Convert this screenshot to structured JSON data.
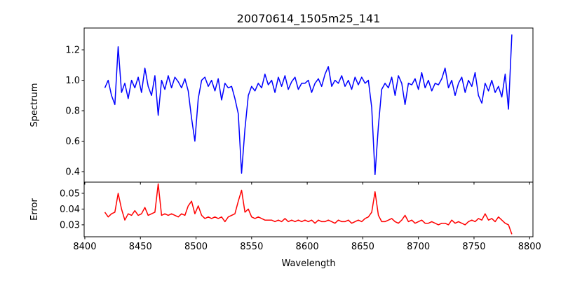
{
  "chart_data": [
    {
      "type": "line",
      "title": "20070614_1505m25_141",
      "xlabel": "",
      "ylabel": "Spectrum",
      "xlim": [
        8399.4,
        8803
      ],
      "ylim": [
        0.331,
        1.343
      ],
      "yticks": [
        0.4,
        0.6,
        0.8,
        1.0,
        1.2
      ],
      "ytick_labels": [
        "0.4",
        "0.6",
        "0.8",
        "1.0",
        "1.2"
      ],
      "grid": false,
      "color": "#0000ff",
      "x_start": 8418,
      "x_step": 3,
      "values": [
        0.95,
        1.0,
        0.9,
        0.84,
        1.22,
        0.92,
        0.98,
        0.88,
        1.0,
        0.95,
        1.02,
        0.92,
        1.08,
        0.96,
        0.9,
        1.03,
        0.77,
        1.0,
        0.94,
        1.03,
        0.95,
        1.02,
        0.99,
        0.95,
        1.01,
        0.93,
        0.75,
        0.6,
        0.88,
        1.0,
        1.02,
        0.96,
        1.0,
        0.93,
        1.01,
        0.87,
        0.98,
        0.95,
        0.96,
        0.88,
        0.78,
        0.39,
        0.68,
        0.9,
        0.96,
        0.93,
        0.98,
        0.95,
        1.04,
        0.97,
        1.0,
        0.92,
        1.02,
        0.96,
        1.03,
        0.94,
        0.99,
        1.02,
        0.94,
        0.98,
        0.98,
        1.0,
        0.92,
        0.98,
        1.01,
        0.96,
        1.04,
        1.09,
        0.96,
        1.0,
        0.98,
        1.03,
        0.96,
        1.0,
        0.94,
        1.02,
        0.97,
        1.02,
        0.98,
        1.0,
        0.82,
        0.38,
        0.7,
        0.94,
        0.98,
        0.95,
        1.02,
        0.9,
        1.03,
        0.98,
        0.84,
        0.98,
        0.97,
        1.01,
        0.94,
        1.05,
        0.95,
        1.0,
        0.93,
        0.98,
        0.97,
        1.01,
        1.08,
        0.95,
        1.0,
        0.9,
        0.98,
        1.02,
        0.92,
        1.0,
        0.96,
        1.05,
        0.9,
        0.85,
        0.98,
        0.93,
        1.0,
        0.92,
        0.96,
        0.89,
        1.04,
        0.81,
        1.3
      ]
    },
    {
      "type": "line",
      "xlabel": "Wavelength",
      "ylabel": "Error",
      "xlim": [
        8399.4,
        8803
      ],
      "ylim": [
        0.0224,
        0.0571
      ],
      "yticks": [
        0.03,
        0.04,
        0.05
      ],
      "ytick_labels": [
        "0.03",
        "0.04",
        "0.05"
      ],
      "xticks": [
        8400,
        8450,
        8500,
        8550,
        8600,
        8650,
        8700,
        8750,
        8800
      ],
      "xtick_labels": [
        "8400",
        "8450",
        "8500",
        "8550",
        "8600",
        "8650",
        "8700",
        "8750",
        "8800"
      ],
      "grid": false,
      "color": "#ff0000",
      "x_start": 8418,
      "x_step": 3,
      "values": [
        0.038,
        0.035,
        0.037,
        0.038,
        0.05,
        0.04,
        0.033,
        0.037,
        0.036,
        0.039,
        0.036,
        0.037,
        0.041,
        0.036,
        0.037,
        0.038,
        0.056,
        0.036,
        0.037,
        0.036,
        0.037,
        0.036,
        0.035,
        0.037,
        0.036,
        0.042,
        0.045,
        0.037,
        0.042,
        0.036,
        0.034,
        0.035,
        0.034,
        0.035,
        0.034,
        0.035,
        0.032,
        0.035,
        0.036,
        0.037,
        0.045,
        0.052,
        0.038,
        0.04,
        0.035,
        0.034,
        0.035,
        0.034,
        0.033,
        0.033,
        0.033,
        0.032,
        0.033,
        0.032,
        0.034,
        0.032,
        0.033,
        0.032,
        0.033,
        0.032,
        0.033,
        0.032,
        0.033,
        0.031,
        0.033,
        0.032,
        0.032,
        0.033,
        0.032,
        0.031,
        0.033,
        0.032,
        0.032,
        0.033,
        0.031,
        0.032,
        0.033,
        0.032,
        0.034,
        0.035,
        0.038,
        0.051,
        0.036,
        0.032,
        0.032,
        0.033,
        0.034,
        0.032,
        0.031,
        0.033,
        0.036,
        0.032,
        0.033,
        0.031,
        0.032,
        0.033,
        0.031,
        0.031,
        0.032,
        0.031,
        0.03,
        0.031,
        0.031,
        0.03,
        0.033,
        0.031,
        0.032,
        0.031,
        0.03,
        0.032,
        0.033,
        0.032,
        0.034,
        0.033,
        0.037,
        0.033,
        0.034,
        0.032,
        0.035,
        0.033,
        0.031,
        0.03,
        0.024
      ]
    }
  ]
}
